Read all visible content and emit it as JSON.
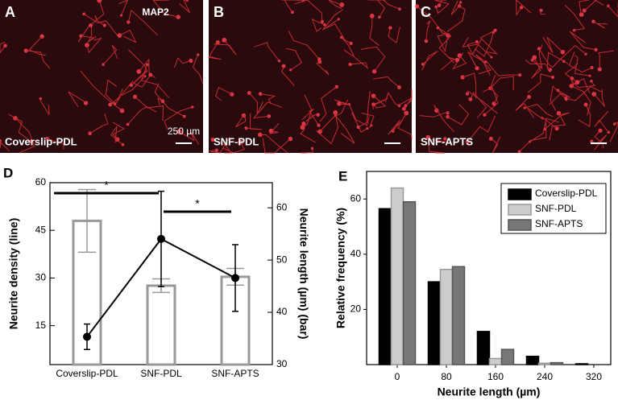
{
  "panels": [
    {
      "letter": "A",
      "label": "Coverslip-PDL",
      "stain": "MAP2",
      "scale": "250 µm"
    },
    {
      "letter": "B",
      "label": "SNF-PDL"
    },
    {
      "letter": "C",
      "label": "SNF-APTS"
    }
  ],
  "chart_data": [
    {
      "type": "bar-line",
      "panel": "D",
      "categories": [
        "Coverslip-PDL",
        "SNF-PDL",
        "SNF-APTS"
      ],
      "ylabel": "Neurite density (line)",
      "y2label": "Neurite length (µm) (bar)",
      "ylim": [
        2.75,
        60
      ],
      "yticks": [
        15,
        30,
        45,
        60
      ],
      "y2lim": [
        30,
        64.8
      ],
      "y2ticks": [
        30,
        40,
        50,
        60
      ],
      "series": [
        {
          "type": "bar",
          "axis": "y2",
          "color": "#999999",
          "values": [
            57.5,
            45.1,
            46.8
          ],
          "errors": [
            6,
            1.3,
            1.6
          ]
        },
        {
          "type": "line",
          "color": "#000000",
          "values": [
            11.5,
            42.3,
            30
          ],
          "errors": [
            4,
            15,
            10.5
          ]
        }
      ],
      "annotations": [
        "*",
        "*"
      ]
    },
    {
      "type": "bar",
      "panel": "E",
      "categories": [
        "0",
        "80",
        "160",
        "240",
        "320"
      ],
      "xlabel": "Neurite length (µm)",
      "ylabel": "Relative frequency (%)",
      "ylim": [
        0,
        70
      ],
      "yticks": [
        20,
        40,
        60
      ],
      "legend": "upper-right",
      "series": [
        {
          "name": "Coverslip-PDL",
          "color": "#000000",
          "values": [
            56.5,
            30,
            12,
            3,
            0.3
          ]
        },
        {
          "name": "SNF-PDL",
          "color": "#cccccc",
          "values": [
            64,
            34.5,
            2.2,
            0.5,
            0
          ]
        },
        {
          "name": "SNF-APTS",
          "color": "#777777",
          "values": [
            59,
            35.5,
            5.5,
            0.7,
            0
          ]
        }
      ]
    }
  ]
}
